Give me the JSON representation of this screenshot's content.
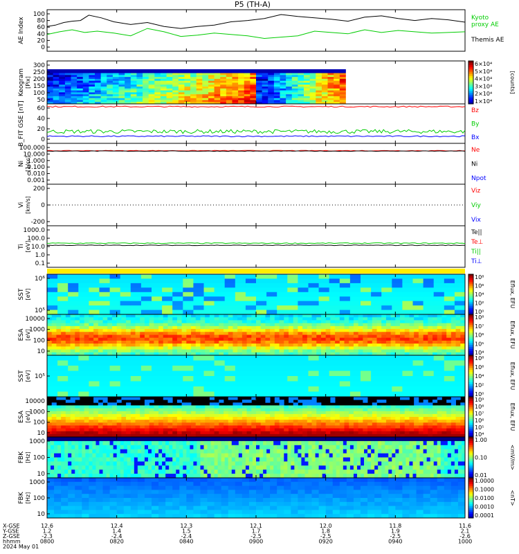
{
  "title": "P5 (TH-A)",
  "chart_data": [
    {
      "type": "line",
      "panel": "ae",
      "ylabel": "AE Index",
      "yticks": [
        "100",
        "80",
        "60",
        "40",
        "20",
        "0"
      ],
      "ylim": [
        0,
        100
      ],
      "legend": [
        "Kyoto",
        "proxy AE",
        "Themis AE"
      ],
      "series": [
        {
          "name": "Themis AE",
          "color": "#000000",
          "x": [
            0,
            2,
            4,
            6,
            8,
            10,
            13,
            16,
            20,
            24,
            28,
            32,
            36,
            40,
            44,
            48,
            52,
            56,
            60,
            64,
            68,
            72,
            76,
            80,
            84,
            88,
            92,
            96,
            100
          ],
          "values": [
            62,
            66,
            74,
            78,
            80,
            96,
            88,
            76,
            68,
            74,
            62,
            56,
            62,
            66,
            76,
            80,
            86,
            98,
            92,
            88,
            84,
            78,
            90,
            94,
            86,
            80,
            86,
            82,
            75
          ]
        },
        {
          "name": "proxy AE",
          "color": "#00cc00",
          "x": [
            0,
            3,
            6,
            9,
            12,
            16,
            20,
            24,
            28,
            32,
            36,
            40,
            44,
            48,
            52,
            56,
            60,
            64,
            68,
            72,
            76,
            80,
            84,
            88,
            92,
            96,
            100
          ],
          "values": [
            38,
            46,
            52,
            44,
            48,
            42,
            34,
            56,
            46,
            32,
            36,
            42,
            38,
            34,
            26,
            30,
            34,
            48,
            44,
            40,
            52,
            44,
            50,
            46,
            42,
            44,
            46
          ]
        }
      ]
    },
    {
      "type": "heatmap",
      "panel": "keogram",
      "ylabel": "Keogram",
      "yunit": "[Pix]",
      "yticks": [
        "300",
        "250",
        "200",
        "150",
        "100",
        "50"
      ],
      "ylim": [
        50,
        300
      ],
      "colorbar": {
        "ticks": [
          "6x10^4",
          "5x10^4",
          "4x10^4",
          "3x10^4",
          "2x10^4",
          "1x10^4"
        ],
        "label": "[counts]"
      }
    },
    {
      "type": "line",
      "panel": "bfield",
      "ylabel": "B_FIT GSE [nT]",
      "yticks": [
        "60",
        "40",
        "20",
        "0"
      ],
      "ylim": [
        -10,
        60
      ],
      "legend": [
        "Bz",
        "By",
        "Bx"
      ],
      "series": [
        {
          "name": "Bz",
          "color": "#ff0000",
          "values": [
            56,
            56,
            56,
            56,
            57,
            56,
            56,
            56,
            57,
            56,
            56,
            56,
            57,
            56,
            56,
            56,
            56,
            56,
            57,
            56,
            56
          ]
        },
        {
          "name": "By",
          "color": "#00cc00",
          "values": [
            8,
            12,
            10,
            14,
            12,
            16,
            18,
            12,
            14,
            10,
            12,
            14,
            12,
            16,
            12,
            14,
            12,
            10,
            8,
            12,
            14
          ]
        },
        {
          "name": "Bx",
          "color": "#0000ff",
          "values": [
            2,
            3,
            2,
            4,
            3,
            3,
            2,
            4,
            3,
            3,
            4,
            3,
            2,
            3,
            4,
            3,
            3,
            2,
            3,
            4,
            3
          ]
        }
      ]
    },
    {
      "type": "line",
      "panel": "density",
      "yscale": "log",
      "ylabel": "Ni",
      "yunit": "[1/cc]",
      "yticks": [
        "100.000",
        "10.000",
        "1.000",
        "0.100",
        "0.010",
        "0.001"
      ],
      "legend": [
        "Ne",
        "Ni",
        "Npot"
      ],
      "series": [
        {
          "name": "Ne",
          "color": "#ff0000",
          "values": [
            20,
            20,
            19,
            21,
            20,
            20,
            22,
            21,
            20,
            20
          ]
        },
        {
          "name": "Ni",
          "color": "#000000",
          "values": [
            17,
            18,
            17,
            18,
            19,
            18,
            18,
            19,
            18,
            17
          ]
        }
      ]
    },
    {
      "type": "line",
      "panel": "velocity",
      "ylabel": "Vi",
      "yunit": "[km/s]",
      "yticks": [
        "200",
        "0",
        "-200"
      ],
      "ylim": [
        -300,
        300
      ],
      "legend": [
        "Viz",
        "Viy",
        "Vix"
      ]
    },
    {
      "type": "line",
      "panel": "temperature",
      "yscale": "log",
      "ylabel": "Ti",
      "yunit": "[eV]",
      "yticks": [
        "1000.0",
        "100.0",
        "10.0",
        "1.0",
        "0.1"
      ],
      "legend": [
        "Te||",
        "Te⊥",
        "Ti||",
        "Ti⊥"
      ],
      "series": [
        {
          "name": "Ti||",
          "color": "#00cc00",
          "values": [
            60,
            62,
            58,
            64,
            60,
            62,
            60,
            58,
            62,
            60
          ]
        },
        {
          "name": "Te||",
          "color": "#000000",
          "values": [
            40,
            42,
            40,
            41,
            40,
            42,
            41,
            40,
            41,
            40
          ]
        }
      ]
    },
    {
      "type": "heatmap",
      "panel": "sst-ion",
      "ylabel": "SST",
      "yunit": "[eV]",
      "yticks": [
        "10^6",
        "10^5"
      ],
      "colorbar": {
        "ticks": [
          "10^8",
          "10^6",
          "10^4",
          "10^2",
          "10^0"
        ],
        "label": "Eflux, EFU"
      }
    },
    {
      "type": "heatmap",
      "panel": "esa-ion",
      "ylabel": "ESA",
      "yunit": "[eV]",
      "yticks": [
        "10000",
        "1000",
        "100",
        "10"
      ],
      "colorbar": {
        "ticks": [
          "10^8",
          "10^7",
          "10^6",
          "10^5",
          "10^4"
        ],
        "label": "Eflux, EFU"
      }
    },
    {
      "type": "heatmap",
      "panel": "sst-elec",
      "ylabel": "SST",
      "yunit": "[eV]",
      "yticks": [
        "10^5"
      ],
      "colorbar": {
        "ticks": [
          "10^8",
          "10^6",
          "10^4",
          "10^2",
          "10^0"
        ],
        "label": "Eflux, EFU"
      }
    },
    {
      "type": "heatmap",
      "panel": "esa-elec",
      "ylabel": "ESA",
      "yunit": "[eV]",
      "yticks": [
        "10000",
        "1000",
        "100",
        "10"
      ],
      "colorbar": {
        "ticks": [
          "10^9",
          "10^8",
          "10^7",
          "10^6",
          "10^5",
          "10^4"
        ],
        "label": "Eflux, EFU"
      }
    },
    {
      "type": "heatmap",
      "panel": "fbk-e",
      "ylabel": "FBK",
      "yunit": "[Hz]",
      "yticks": [
        "1000",
        "100",
        "10"
      ],
      "colorbar": {
        "ticks": [
          "1.00",
          "0.10",
          "0.01"
        ],
        "label": "<mV/m>"
      }
    },
    {
      "type": "heatmap",
      "panel": "fbk-b",
      "ylabel": "FBK",
      "yunit": "[Hz]",
      "yticks": [
        "1000",
        "100",
        "10"
      ],
      "colorbar": {
        "ticks": [
          "1.0000",
          "0.1000",
          "0.0100",
          "0.0010",
          "0.0001"
        ],
        "label": "<nT>"
      }
    }
  ],
  "xaxis": {
    "row_labels": [
      "X-GSE",
      "Y-GSE",
      "Z-GSE",
      "hhmm",
      "2024 May 01"
    ],
    "ticks": [
      {
        "x": "12.6",
        "y": "1.2",
        "z": "-2.3",
        "t": "0800"
      },
      {
        "x": "12.4",
        "y": "1.4",
        "z": "-2.4",
        "t": "0820"
      },
      {
        "x": "12.3",
        "y": "1.5",
        "z": "-2.4",
        "t": "0840"
      },
      {
        "x": "12.1",
        "y": "1.7",
        "z": "-2.5",
        "t": "0900"
      },
      {
        "x": "12.0",
        "y": "1.8",
        "z": "-2.5",
        "t": "0920"
      },
      {
        "x": "11.8",
        "y": "1.9",
        "z": "-2.5",
        "t": "0940"
      },
      {
        "x": "11.6",
        "y": "2.1",
        "z": "-2.6",
        "t": "1000"
      }
    ]
  },
  "colors": {
    "legend_red": "#ff0000",
    "legend_green": "#00cc00",
    "legend_blue": "#0000ff"
  }
}
